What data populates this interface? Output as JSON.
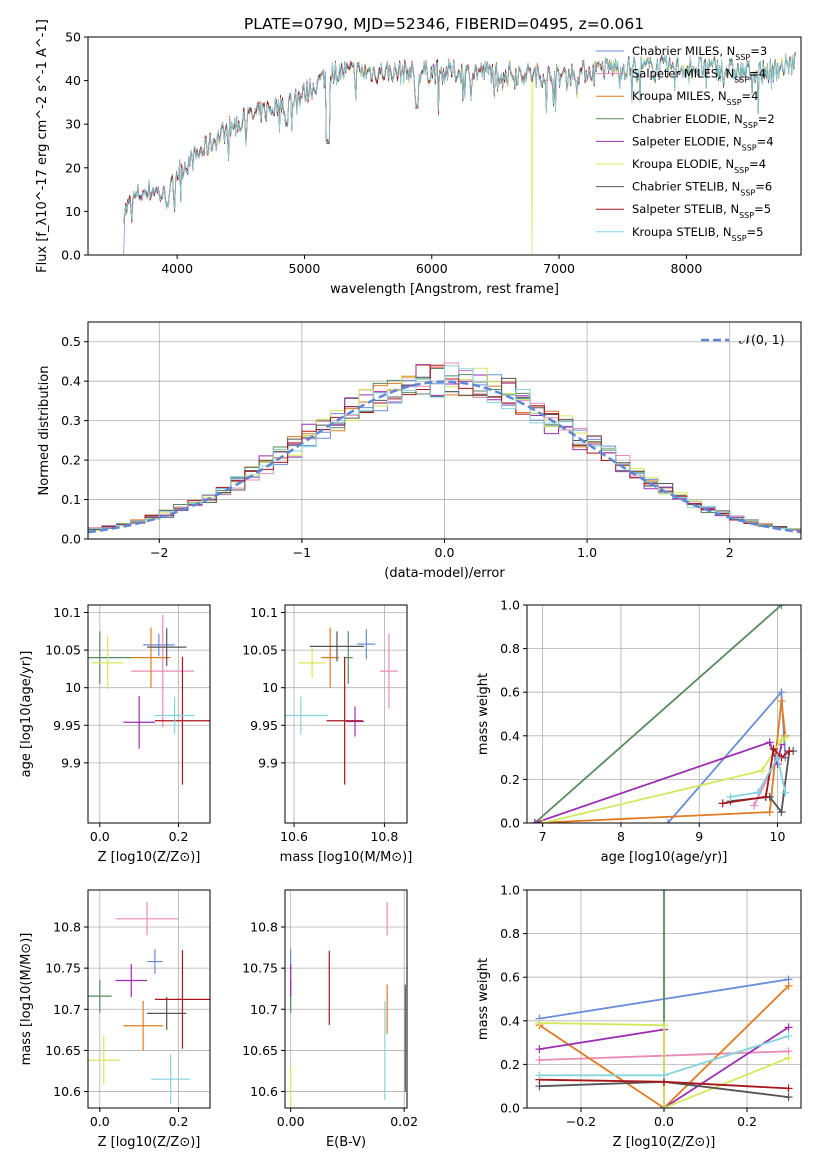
{
  "figure_title": "PLATE=0790, MJD=52346, FIBERID=0495, z=0.061",
  "series": [
    {
      "name": "Chabrier MILES",
      "nssp": "3",
      "color": "#6b8dd6"
    },
    {
      "name": "Salpeter MILES",
      "nssp": "4",
      "color": "#e88bb6"
    },
    {
      "name": "Kroupa MILES",
      "nssp": "4",
      "color": "#e07b22"
    },
    {
      "name": "Chabrier ELODIE",
      "nssp": "2",
      "color": "#5a8a5f"
    },
    {
      "name": "Salpeter ELODIE",
      "nssp": "4",
      "color": "#9a2fb1"
    },
    {
      "name": "Kroupa ELODIE",
      "nssp": "4",
      "color": "#d5e85c"
    },
    {
      "name": "Chabrier STELIB",
      "nssp": "6",
      "color": "#555555"
    },
    {
      "name": "Salpeter STELIB",
      "nssp": "5",
      "color": "#a8161c"
    },
    {
      "name": "Kroupa STELIB",
      "nssp": "5",
      "color": "#86d4de"
    }
  ],
  "chart_data": [
    {
      "id": "spectrum",
      "type": "line",
      "xlabel": "wavelength [Angstrom, rest frame]",
      "ylabel": "Flux [f_λ10^-17 erg cm^-2 s^-1 A^-1]",
      "xlim": [
        3300,
        8900
      ],
      "ylim": [
        0,
        50
      ],
      "xticks": [
        4000,
        5000,
        6000,
        7000,
        8000
      ],
      "yticks": [
        0,
        10,
        20,
        30,
        40,
        50
      ],
      "legend": "top-right",
      "grid": false,
      "continuum": [
        [
          3580,
          10
        ],
        [
          3700,
          14
        ],
        [
          3820,
          15
        ],
        [
          3930,
          13
        ],
        [
          4000,
          19
        ],
        [
          4200,
          24
        ],
        [
          4400,
          29
        ],
        [
          4600,
          32
        ],
        [
          4860,
          35
        ],
        [
          5000,
          37
        ],
        [
          5200,
          42
        ],
        [
          5500,
          42
        ],
        [
          6000,
          42
        ],
        [
          6500,
          42
        ],
        [
          7000,
          41
        ],
        [
          7400,
          43
        ],
        [
          7800,
          43
        ],
        [
          8200,
          43
        ],
        [
          8400,
          42
        ],
        [
          8600,
          42
        ],
        [
          8860,
          44
        ]
      ],
      "drops": [
        {
          "series": "Chabrier MILES",
          "x": 3580
        },
        {
          "series": "Kroupa ELODIE",
          "x": 3910
        },
        {
          "series": "Kroupa ELODIE",
          "x": 6790
        },
        {
          "series": "Salpeter STELIB",
          "x": 7410
        }
      ]
    },
    {
      "id": "residuals",
      "type": "histogram",
      "xlabel": "(data-model)/error",
      "ylabel": "Normed distribution",
      "xlim": [
        -2.5,
        2.5
      ],
      "ylim": [
        0,
        0.55
      ],
      "xticks": [
        -2,
        -1,
        0,
        1,
        2
      ],
      "yticks": [
        0.0,
        0.1,
        0.2,
        0.3,
        0.4,
        0.5
      ],
      "bin_width": 0.1,
      "grid": true,
      "legend": "top-right",
      "reference_label": "𝒩(0, 1)",
      "reference_color": "#5f87d6"
    },
    {
      "id": "age-vs-Z",
      "type": "scatter",
      "xlabel": "Z [log10(Z/Z⊙)]",
      "ylabel": "age  [log10(age/yr)]",
      "xlim": [
        -0.03,
        0.28
      ],
      "ylim": [
        9.82,
        10.11
      ],
      "xticks": [
        0.0,
        0.2
      ],
      "yticks": [
        9.9,
        9.95,
        10.0,
        10.05,
        10.1
      ],
      "grid": true,
      "points": [
        {
          "series": "Chabrier MILES",
          "x": 0.15,
          "y": 10.057,
          "xerr": 0.04,
          "yerr": 0.015
        },
        {
          "series": "Salpeter MILES",
          "x": 0.16,
          "y": 10.022,
          "xerr": 0.08,
          "yerr": 0.075
        },
        {
          "series": "Kroupa MILES",
          "x": 0.13,
          "y": 10.04,
          "xerr": 0.05,
          "yerr": 0.04
        },
        {
          "series": "Chabrier ELODIE",
          "x": 0.0,
          "y": 10.04,
          "xerr": 0.08,
          "yerr": 0.035
        },
        {
          "series": "Salpeter ELODIE",
          "x": 0.1,
          "y": 9.954,
          "xerr": 0.04,
          "yerr": 0.035
        },
        {
          "series": "Kroupa ELODIE",
          "x": 0.02,
          "y": 10.033,
          "xerr": 0.04,
          "yerr": 0.035
        },
        {
          "series": "Chabrier STELIB",
          "x": 0.17,
          "y": 10.054,
          "xerr": 0.05,
          "yerr": 0.025
        },
        {
          "series": "Salpeter STELIB",
          "x": 0.21,
          "y": 9.956,
          "xerr": 0.07,
          "yerr": 0.085
        },
        {
          "series": "Kroupa STELIB",
          "x": 0.19,
          "y": 9.963,
          "xerr": 0.05,
          "yerr": 0.025
        }
      ]
    },
    {
      "id": "age-vs-mass",
      "type": "scatter",
      "xlabel": "mass [log10(M/M⊙)]",
      "ylabel": "",
      "xlim": [
        10.58,
        10.85
      ],
      "ylim": [
        9.82,
        10.11
      ],
      "xticks": [
        10.6,
        10.8
      ],
      "yticks": [
        9.9,
        9.95,
        10.0,
        10.05,
        10.1
      ],
      "grid": true,
      "points": [
        {
          "series": "Chabrier MILES",
          "x": 10.76,
          "y": 10.058,
          "xerr": 0.02,
          "yerr": 0.02
        },
        {
          "series": "Salpeter MILES",
          "x": 10.81,
          "y": 10.022,
          "xerr": 0.02,
          "yerr": 0.05
        },
        {
          "series": "Kroupa MILES",
          "x": 10.68,
          "y": 10.04,
          "xerr": 0.02,
          "yerr": 0.04
        },
        {
          "series": "Chabrier ELODIE",
          "x": 10.72,
          "y": 10.04,
          "xerr": 0.01,
          "yerr": 0.035
        },
        {
          "series": "Salpeter ELODIE",
          "x": 10.735,
          "y": 9.955,
          "xerr": 0.02,
          "yerr": 0.02
        },
        {
          "series": "Kroupa ELODIE",
          "x": 10.64,
          "y": 10.033,
          "xerr": 0.03,
          "yerr": 0.02
        },
        {
          "series": "Chabrier STELIB",
          "x": 10.695,
          "y": 10.055,
          "xerr": 0.06,
          "yerr": 0.02
        },
        {
          "series": "Salpeter STELIB",
          "x": 10.712,
          "y": 9.956,
          "xerr": 0.04,
          "yerr": 0.085
        },
        {
          "series": "Kroupa STELIB",
          "x": 10.615,
          "y": 9.963,
          "xerr": 0.06,
          "yerr": 0.025
        }
      ]
    },
    {
      "id": "weight-vs-age",
      "type": "line",
      "xlabel": "age  [log10(age/yr)]",
      "ylabel": "mass weight",
      "xlim": [
        6.8,
        10.3
      ],
      "ylim": [
        0,
        1.0
      ],
      "xticks": [
        7,
        8,
        9,
        10
      ],
      "yticks": [
        0.0,
        0.2,
        0.4,
        0.6,
        0.8,
        1.0
      ],
      "grid": true,
      "lines": [
        {
          "series": "Chabrier MILES",
          "points": [
            [
              8.6,
              0.0
            ],
            [
              10.05,
              0.6
            ],
            [
              10.1,
              0.3
            ]
          ]
        },
        {
          "series": "Salpeter MILES",
          "points": [
            [
              9.7,
              0.08
            ],
            [
              10.0,
              0.3
            ],
            [
              10.05,
              0.3
            ]
          ]
        },
        {
          "series": "Kroupa MILES",
          "points": [
            [
              6.9,
              0.0
            ],
            [
              9.9,
              0.05
            ],
            [
              10.05,
              0.56
            ],
            [
              10.1,
              0.4
            ]
          ]
        },
        {
          "series": "Chabrier ELODIE",
          "points": [
            [
              6.9,
              0.0
            ],
            [
              10.05,
              1.0
            ]
          ]
        },
        {
          "series": "Salpeter ELODIE",
          "points": [
            [
              6.9,
              0.0
            ],
            [
              9.9,
              0.37
            ],
            [
              10.0,
              0.27
            ],
            [
              10.05,
              0.36
            ]
          ]
        },
        {
          "series": "Kroupa ELODIE",
          "points": [
            [
              7.0,
              0.0
            ],
            [
              9.8,
              0.24
            ],
            [
              10.05,
              0.38
            ],
            [
              10.1,
              0.39
            ]
          ]
        },
        {
          "series": "Chabrier STELIB",
          "points": [
            [
              9.4,
              0.1
            ],
            [
              9.9,
              0.12
            ],
            [
              10.05,
              0.05
            ],
            [
              10.15,
              0.33
            ],
            [
              10.2,
              0.33
            ]
          ]
        },
        {
          "series": "Salpeter STELIB",
          "points": [
            [
              9.3,
              0.09
            ],
            [
              9.85,
              0.12
            ],
            [
              9.95,
              0.34
            ],
            [
              10.05,
              0.3
            ],
            [
              10.15,
              0.33
            ]
          ]
        },
        {
          "series": "Kroupa STELIB",
          "points": [
            [
              9.4,
              0.12
            ],
            [
              9.75,
              0.14
            ],
            [
              10.0,
              0.3
            ],
            [
              10.1,
              0.14
            ]
          ]
        }
      ]
    },
    {
      "id": "mass-vs-Z",
      "type": "scatter",
      "xlabel": "Z [log10(Z/Z⊙)]",
      "ylabel": "mass [log10(M/M⊙)]",
      "xlim": [
        -0.03,
        0.28
      ],
      "ylim": [
        10.58,
        10.845
      ],
      "xticks": [
        0.0,
        0.2
      ],
      "yticks": [
        10.6,
        10.65,
        10.7,
        10.75,
        10.8
      ],
      "grid": true,
      "points": [
        {
          "series": "Chabrier MILES",
          "x": 0.14,
          "y": 10.758,
          "xerr": 0.02,
          "yerr": 0.015
        },
        {
          "series": "Salpeter MILES",
          "x": 0.12,
          "y": 10.81,
          "xerr": 0.08,
          "yerr": 0.02
        },
        {
          "series": "Kroupa MILES",
          "x": 0.11,
          "y": 10.68,
          "xerr": 0.05,
          "yerr": 0.03
        },
        {
          "series": "Chabrier ELODIE",
          "x": 0.0,
          "y": 10.716,
          "xerr": 0.03,
          "yerr": 0.02
        },
        {
          "series": "Salpeter ELODIE",
          "x": 0.08,
          "y": 10.735,
          "xerr": 0.04,
          "yerr": 0.02
        },
        {
          "series": "Kroupa ELODIE",
          "x": 0.01,
          "y": 10.638,
          "xerr": 0.04,
          "yerr": 0.03
        },
        {
          "series": "Chabrier STELIB",
          "x": 0.17,
          "y": 10.695,
          "xerr": 0.05,
          "yerr": 0.02
        },
        {
          "series": "Salpeter STELIB",
          "x": 0.21,
          "y": 10.712,
          "xerr": 0.07,
          "yerr": 0.06
        },
        {
          "series": "Kroupa STELIB",
          "x": 0.18,
          "y": 10.615,
          "xerr": 0.05,
          "yerr": 0.03
        }
      ]
    },
    {
      "id": "mass-vs-ebv",
      "type": "scatter",
      "xlabel": "E(B-V)",
      "ylabel": "",
      "xlim": [
        -0.001,
        0.0205
      ],
      "ylim": [
        10.58,
        10.845
      ],
      "xticks": [
        0.0,
        0.02
      ],
      "yticks": [
        10.6,
        10.65,
        10.7,
        10.75,
        10.8
      ],
      "grid": true,
      "points": [
        {
          "series": "Chabrier MILES",
          "x": 0.0,
          "y": 10.758,
          "xerr": 0,
          "yerr": 0.015
        },
        {
          "series": "Salpeter MILES",
          "x": 0.017,
          "y": 10.81,
          "xerr": 0,
          "yerr": 0.02
        },
        {
          "series": "Kroupa MILES",
          "x": 0.017,
          "y": 10.7,
          "xerr": 0,
          "yerr": 0.03
        },
        {
          "series": "Chabrier ELODIE",
          "x": 0.0,
          "y": 10.716,
          "xerr": 0,
          "yerr": 0.02
        },
        {
          "series": "Salpeter ELODIE",
          "x": 0.0,
          "y": 10.735,
          "xerr": 0,
          "yerr": 0.02
        },
        {
          "series": "Kroupa ELODIE",
          "x": 0.0,
          "y": 10.6,
          "xerr": 0,
          "yerr": 0.03
        },
        {
          "series": "Chabrier STELIB",
          "x": 0.0202,
          "y": 10.665,
          "xerr": 0,
          "yerr": 0.065
        },
        {
          "series": "Salpeter STELIB",
          "x": 0.0068,
          "y": 10.726,
          "xerr": 0,
          "yerr": 0.045
        },
        {
          "series": "Kroupa STELIB",
          "x": 0.0166,
          "y": 10.65,
          "xerr": 0,
          "yerr": 0.06
        }
      ]
    },
    {
      "id": "weight-vs-Z",
      "type": "line",
      "xlabel": "Z [log10(Z/Z⊙)]",
      "ylabel": "mass weight",
      "xlim": [
        -0.33,
        0.33
      ],
      "ylim": [
        0,
        1.0
      ],
      "xticks": [
        -0.2,
        0.0,
        0.2
      ],
      "yticks": [
        0.0,
        0.2,
        0.4,
        0.6,
        0.8,
        1.0
      ],
      "grid": true,
      "lines": [
        {
          "series": "Chabrier MILES",
          "points": [
            [
              -0.3,
              0.41
            ],
            [
              0.3,
              0.59
            ]
          ]
        },
        {
          "series": "Salpeter MILES",
          "points": [
            [
              -0.3,
              0.22
            ],
            [
              0.0,
              0.24
            ],
            [
              0.3,
              0.26
            ]
          ]
        },
        {
          "series": "Kroupa MILES",
          "points": [
            [
              -0.3,
              0.38
            ],
            [
              0.0,
              0.0
            ],
            [
              0.3,
              0.56
            ]
          ]
        },
        {
          "series": "Chabrier ELODIE",
          "points": [
            [
              0.0,
              1.0
            ],
            [
              0.0,
              0.0
            ]
          ]
        },
        {
          "series": "Salpeter ELODIE",
          "points": [
            [
              -0.3,
              0.27
            ],
            [
              0.0,
              0.36
            ],
            [
              0.0,
              0.0
            ],
            [
              0.3,
              0.37
            ]
          ]
        },
        {
          "series": "Kroupa ELODIE",
          "points": [
            [
              -0.3,
              0.39
            ],
            [
              0.0,
              0.38
            ],
            [
              0.0,
              0.0
            ],
            [
              0.3,
              0.23
            ]
          ]
        },
        {
          "series": "Chabrier STELIB",
          "points": [
            [
              -0.3,
              0.1
            ],
            [
              0.0,
              0.12
            ],
            [
              0.3,
              0.05
            ]
          ]
        },
        {
          "series": "Salpeter STELIB",
          "points": [
            [
              -0.3,
              0.13
            ],
            [
              0.0,
              0.12
            ],
            [
              0.3,
              0.09
            ]
          ]
        },
        {
          "series": "Kroupa STELIB",
          "points": [
            [
              -0.3,
              0.15
            ],
            [
              0.0,
              0.15
            ],
            [
              0.3,
              0.33
            ]
          ]
        }
      ]
    }
  ]
}
